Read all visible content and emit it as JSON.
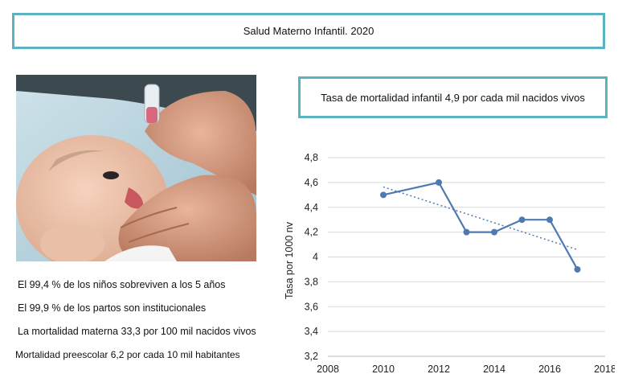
{
  "header": {
    "title": "Salud Materno Infantil. 2020"
  },
  "photo": {
    "description_icon": "baby-vaccine-photo"
  },
  "facts": [
    "El 99,4 % de los niños sobreviven a los 5 años",
    "El 99,9 % de los partos son institucionales",
    "La mortalidad materna 33,3 por 100 mil nacidos vivos",
    "Mortalidad preescolar 6,2 por cada 10 mil habitantes"
  ],
  "rate_box": {
    "text": "Tasa de mortalidad infantil 4,9 por cada mil nacidos vivos"
  },
  "colors": {
    "frame": "#5ab3bf",
    "series": "#4f7ab1",
    "grid": "#d9d9d9"
  },
  "chart_data": {
    "type": "line",
    "title": "",
    "xlabel": "",
    "ylabel": "Tasa por 1000 nv",
    "xlim": [
      2008,
      2018
    ],
    "ylim": [
      3.2,
      4.8
    ],
    "xticks": [
      2008,
      2010,
      2012,
      2014,
      2016,
      2018
    ],
    "yticks": [
      3.2,
      3.4,
      3.6,
      3.8,
      4.0,
      4.2,
      4.4,
      4.6,
      4.8
    ],
    "xtick_labels": [
      "2008",
      "2010",
      "2012",
      "2014",
      "2016",
      "2018"
    ],
    "ytick_labels": [
      "3,2",
      "3,4",
      "3,6",
      "3,8",
      "4",
      "4,2",
      "4,4",
      "4,6",
      "4,8"
    ],
    "grid": "horizontal",
    "series": [
      {
        "x": [
          2010,
          2012,
          2013,
          2014,
          2015,
          2016,
          2017
        ],
        "y": [
          4.5,
          4.6,
          4.2,
          4.2,
          4.3,
          4.3,
          3.9
        ]
      }
    ],
    "trendline": {
      "style": "dotted",
      "type": "linear"
    }
  }
}
